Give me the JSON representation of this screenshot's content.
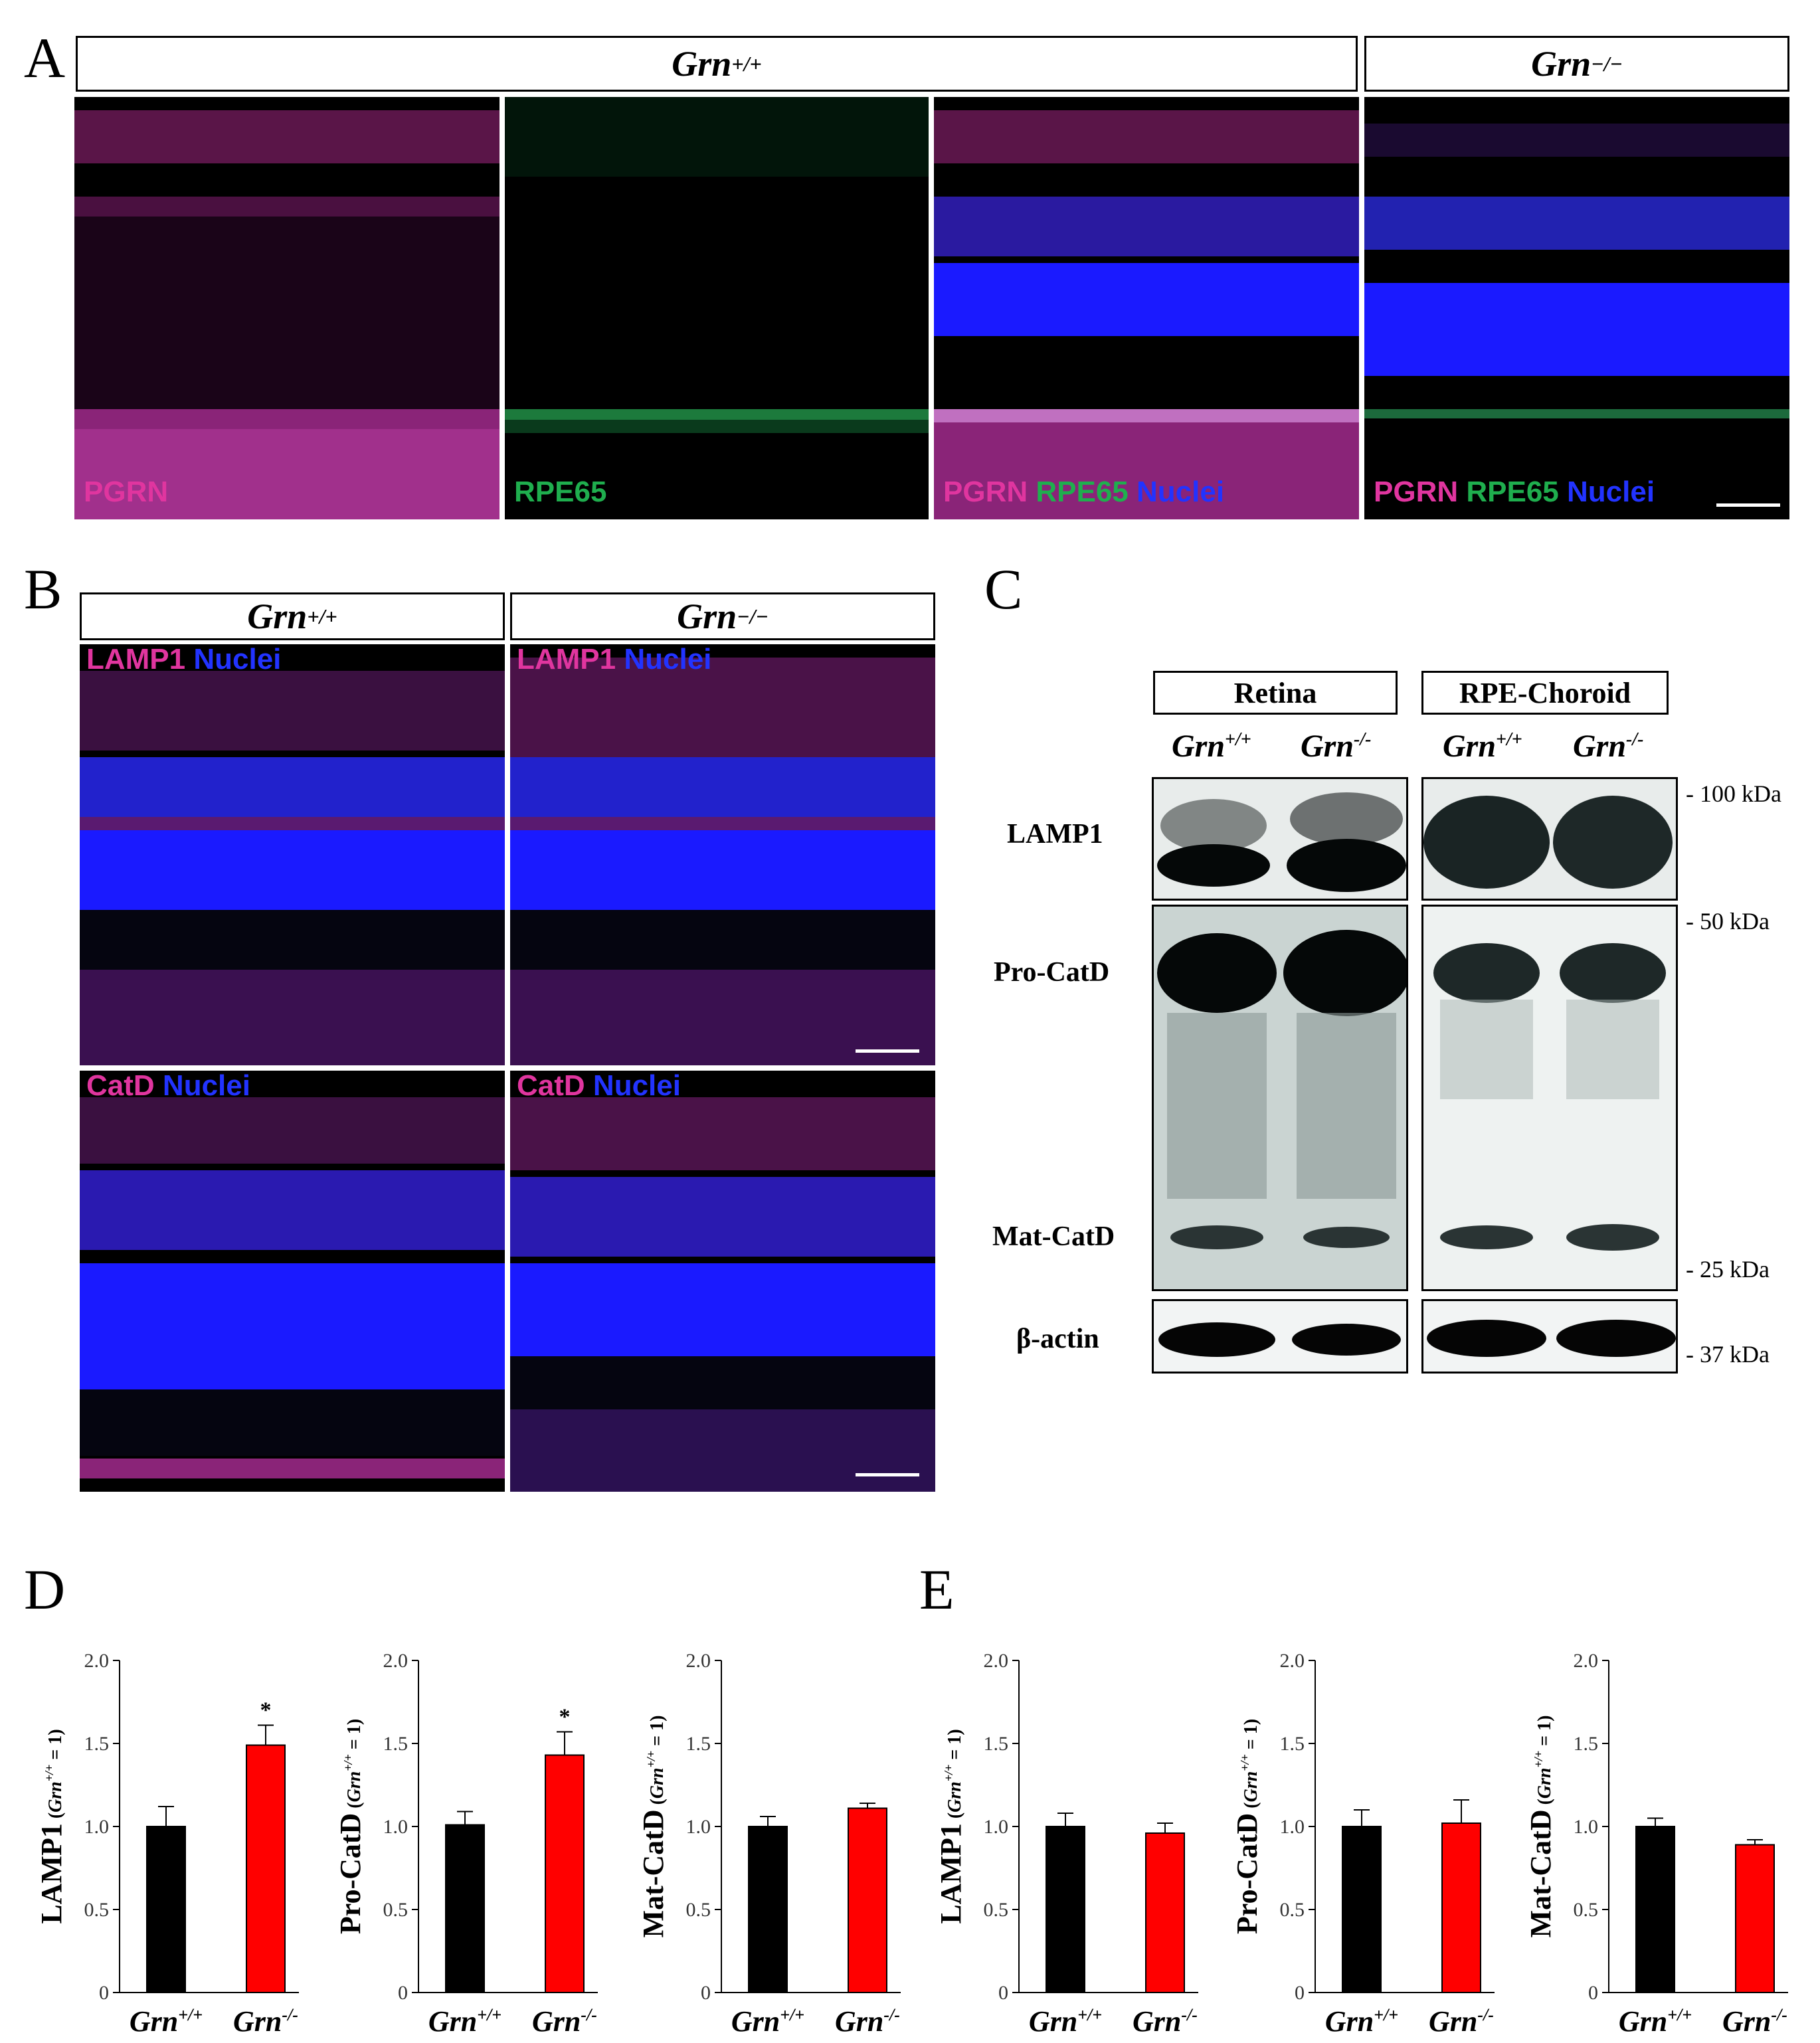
{
  "panel_labels": {
    "a": "A",
    "b": "B",
    "c": "C",
    "d": "D",
    "e": "E"
  },
  "genotypes": {
    "wt_base": "Grn",
    "wt_sup": "+/+",
    "ko_base": "Grn",
    "ko_sup": "−/−",
    "ko_sup_short": "-/-"
  },
  "panel_a": {
    "images": [
      {
        "labels": [
          {
            "text": "PGRN",
            "color": "magenta"
          }
        ]
      },
      {
        "labels": [
          {
            "text": "RPE65",
            "color": "green"
          }
        ]
      },
      {
        "labels": [
          {
            "text": "PGRN",
            "color": "magenta"
          },
          {
            "text": "RPE65",
            "color": "green"
          },
          {
            "text": "Nuclei",
            "color": "blue"
          }
        ]
      },
      {
        "labels": [
          {
            "text": "PGRN",
            "color": "magenta"
          },
          {
            "text": "RPE65",
            "color": "green"
          },
          {
            "text": "Nuclei",
            "color": "blue"
          }
        ]
      }
    ]
  },
  "panel_b": {
    "rows": [
      {
        "marker": "LAMP1",
        "counter": "Nuclei"
      },
      {
        "marker": "CatD",
        "counter": "Nuclei"
      }
    ]
  },
  "panel_c": {
    "tissues": [
      "Retina",
      "RPE-Choroid"
    ],
    "proteins": [
      "LAMP1",
      "Pro-CatD",
      "Mat-CatD",
      "β-actin"
    ],
    "markers": [
      "- 100 kDa",
      "- 50 kDa",
      "- 25 kDa",
      "- 37 kDa"
    ]
  },
  "colors": {
    "magenta": "#e0359f",
    "green": "#1fae4e",
    "blue": "#2233ff",
    "wt_bar": "#000000",
    "ko_bar": "#ff0000"
  },
  "chart_data": [
    {
      "panel": "D",
      "type": "bar",
      "ylabel_main": "LAMP1",
      "ylabel_sub_base": "Grn",
      "ylabel_sub_sup": "+/+",
      "ylabel_sub_tail": " = 1",
      "categories": [
        "Grn+/+",
        "Grn-/-"
      ],
      "values": [
        1.0,
        1.49
      ],
      "errors": [
        0.12,
        0.12
      ],
      "significance": [
        "",
        "*"
      ],
      "ylim": [
        0,
        2.0
      ],
      "yticks": [
        "0",
        "0.5",
        "1.0",
        "1.5",
        "2.0"
      ]
    },
    {
      "panel": "D",
      "type": "bar",
      "ylabel_main": "Pro-CatD",
      "ylabel_sub_base": "Grn",
      "ylabel_sub_sup": "+/+",
      "ylabel_sub_tail": " = 1",
      "categories": [
        "Grn+/+",
        "Grn-/-"
      ],
      "values": [
        1.01,
        1.43
      ],
      "errors": [
        0.08,
        0.14
      ],
      "significance": [
        "",
        "*"
      ],
      "ylim": [
        0,
        2.0
      ],
      "yticks": [
        "0",
        "0.5",
        "1.0",
        "1.5",
        "2.0"
      ]
    },
    {
      "panel": "D",
      "type": "bar",
      "ylabel_main": "Mat-CatD",
      "ylabel_sub_base": "Grn",
      "ylabel_sub_sup": "+/+",
      "ylabel_sub_tail": " = 1",
      "categories": [
        "Grn+/+",
        "Grn-/-"
      ],
      "values": [
        1.0,
        1.11
      ],
      "errors": [
        0.06,
        0.03
      ],
      "significance": [
        "",
        ""
      ],
      "ylim": [
        0,
        2.0
      ],
      "yticks": [
        "0",
        "0.5",
        "1.0",
        "1.5",
        "2.0"
      ]
    },
    {
      "panel": "E",
      "type": "bar",
      "ylabel_main": "LAMP1",
      "ylabel_sub_base": "Grn",
      "ylabel_sub_sup": "+/+",
      "ylabel_sub_tail": " = 1",
      "categories": [
        "Grn+/+",
        "Grn-/-"
      ],
      "values": [
        1.0,
        0.96
      ],
      "errors": [
        0.08,
        0.06
      ],
      "significance": [
        "",
        ""
      ],
      "ylim": [
        0,
        2.0
      ],
      "yticks": [
        "0",
        "0.5",
        "1.0",
        "1.5",
        "2.0"
      ]
    },
    {
      "panel": "E",
      "type": "bar",
      "ylabel_main": "Pro-CatD",
      "ylabel_sub_base": "Grn",
      "ylabel_sub_sup": "+/+",
      "ylabel_sub_tail": " = 1",
      "categories": [
        "Grn+/+",
        "Grn-/-"
      ],
      "values": [
        1.0,
        1.02
      ],
      "errors": [
        0.1,
        0.14
      ],
      "significance": [
        "",
        ""
      ],
      "ylim": [
        0,
        2.0
      ],
      "yticks": [
        "0",
        "0.5",
        "1.0",
        "1.5",
        "2.0"
      ]
    },
    {
      "panel": "E",
      "type": "bar",
      "ylabel_main": "Mat-CatD",
      "ylabel_sub_base": "Grn",
      "ylabel_sub_sup": "+/+",
      "ylabel_sub_tail": " = 1",
      "categories": [
        "Grn+/+",
        "Grn-/-"
      ],
      "values": [
        1.0,
        0.89
      ],
      "errors": [
        0.05,
        0.03
      ],
      "significance": [
        "",
        ""
      ],
      "ylim": [
        0,
        2.0
      ],
      "yticks": [
        "0",
        "0.5",
        "1.0",
        "1.5",
        "2.0"
      ]
    }
  ]
}
